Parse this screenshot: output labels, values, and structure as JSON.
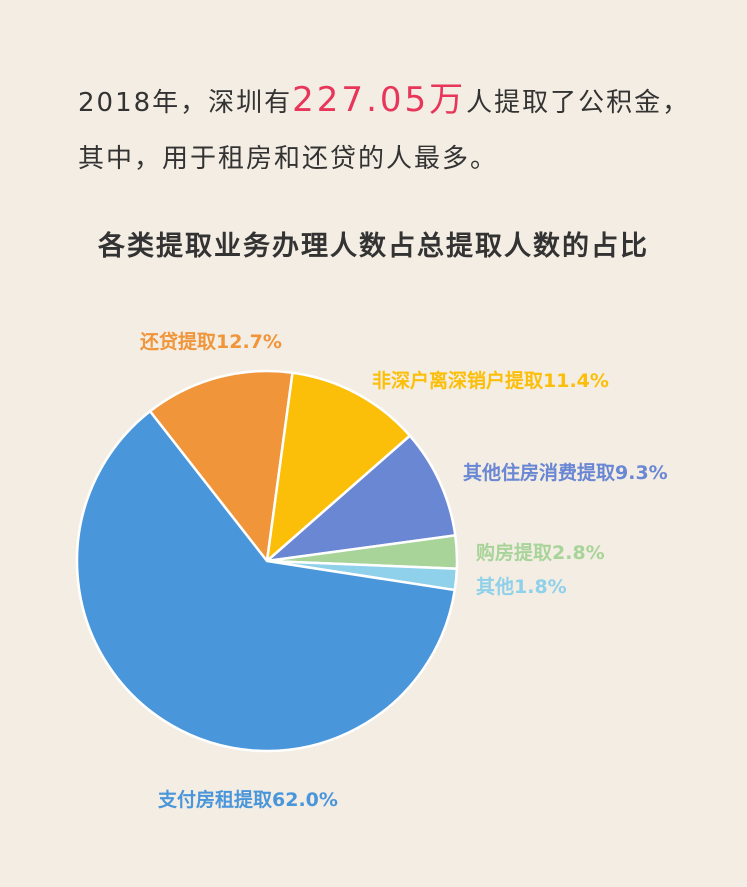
{
  "intro": {
    "line1_pre": "2018年，深圳有",
    "line1_highlight": "227.05万",
    "line1_post": "人提取了公积金，",
    "line2": "其中，用于租房和还贷的人最多。",
    "highlight_color": "#e8355a"
  },
  "chart_data": {
    "type": "pie",
    "title": "各类提取业务办理人数占总提取人数的占比",
    "slices": [
      {
        "label": "支付房租提取62.0%",
        "name": "支付房租提取",
        "value": 62.0,
        "color": "#4a96db"
      },
      {
        "label": "还贷提取12.7%",
        "name": "还贷提取",
        "value": 12.7,
        "color": "#f0953a"
      },
      {
        "label": "非深户离深销户提取11.4%",
        "name": "非深户离深销户提取",
        "value": 11.4,
        "color": "#fbbf0a"
      },
      {
        "label": "其他住房消费提取9.3%",
        "name": "其他住房消费提取",
        "value": 9.3,
        "color": "#6a87d4"
      },
      {
        "label": "购房提取2.8%",
        "name": "购房提取",
        "value": 2.8,
        "color": "#a8d49a"
      },
      {
        "label": "其他1.8%",
        "name": "其他",
        "value": 1.8,
        "color": "#8fd0ea"
      }
    ]
  }
}
